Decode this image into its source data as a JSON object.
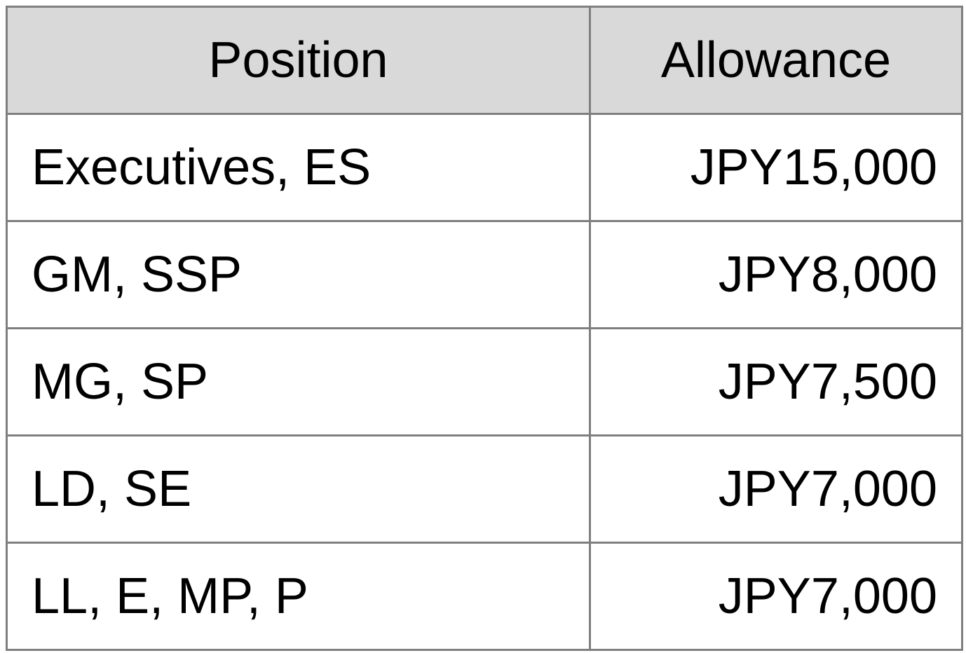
{
  "table": {
    "headers": {
      "position": "Position",
      "allowance": "Allowance"
    },
    "rows": [
      {
        "position": "Executives, ES",
        "allowance": "JPY15,000"
      },
      {
        "position": "GM, SSP",
        "allowance": "JPY8,000"
      },
      {
        "position": "MG, SP",
        "allowance": "JPY7,500"
      },
      {
        "position": "LD, SE",
        "allowance": "JPY7,000"
      },
      {
        "position": "LL, E, MP, P",
        "allowance": "JPY7,000"
      }
    ],
    "colors": {
      "header_background": "#d9d9d9",
      "border": "#7f7f7f",
      "text": "#000000"
    }
  }
}
